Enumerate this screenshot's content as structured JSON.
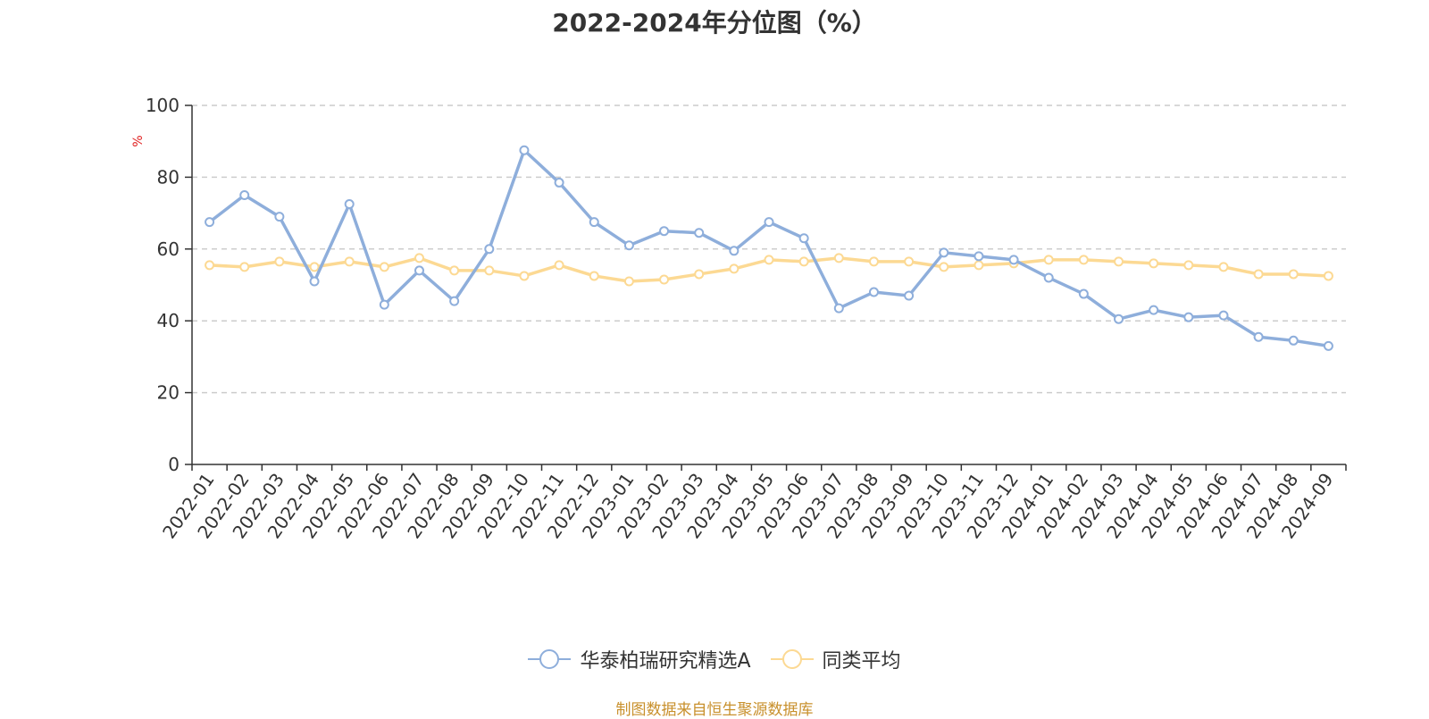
{
  "chart_data": {
    "type": "line",
    "title": "2022-2024年分位图（%）",
    "ylabel": "%",
    "xlabel": "",
    "ylim": [
      0,
      100
    ],
    "yticks": [
      0,
      20,
      40,
      60,
      80,
      100
    ],
    "grid": true,
    "legend_position": "bottom-center",
    "categories": [
      "2022-01",
      "2022-02",
      "2022-03",
      "2022-04",
      "2022-05",
      "2022-06",
      "2022-07",
      "2022-08",
      "2022-09",
      "2022-10",
      "2022-11",
      "2022-12",
      "2023-01",
      "2023-02",
      "2023-03",
      "2023-04",
      "2023-05",
      "2023-06",
      "2023-07",
      "2023-08",
      "2023-09",
      "2023-10",
      "2023-11",
      "2023-12",
      "2024-01",
      "2024-02",
      "2024-03",
      "2024-04",
      "2024-05",
      "2024-06",
      "2024-07",
      "2024-08",
      "2024-09"
    ],
    "series": [
      {
        "name": "华泰柏瑞研究精选A",
        "color": "#8eaedb",
        "values": [
          67.5,
          75.0,
          69.0,
          51.0,
          72.5,
          44.5,
          54.0,
          45.5,
          60.0,
          87.5,
          78.5,
          67.5,
          61.0,
          65.0,
          64.5,
          59.5,
          67.5,
          63.0,
          43.5,
          48.0,
          47.0,
          59.0,
          58.0,
          57.0,
          52.0,
          47.5,
          40.5,
          43.0,
          41.0,
          41.5,
          35.5,
          34.5,
          33.0
        ]
      },
      {
        "name": "同类平均",
        "color": "#fcd993",
        "values": [
          55.5,
          55.0,
          56.5,
          55.0,
          56.5,
          55.0,
          57.5,
          54.0,
          54.0,
          52.5,
          55.5,
          52.5,
          51.0,
          51.5,
          53.0,
          54.5,
          57.0,
          56.5,
          57.5,
          56.5,
          56.5,
          55.0,
          55.5,
          56.0,
          57.0,
          57.0,
          56.5,
          56.0,
          55.5,
          55.0,
          53.0,
          53.0,
          52.5
        ]
      }
    ]
  },
  "source_text": "制图数据来自恒生聚源数据库"
}
